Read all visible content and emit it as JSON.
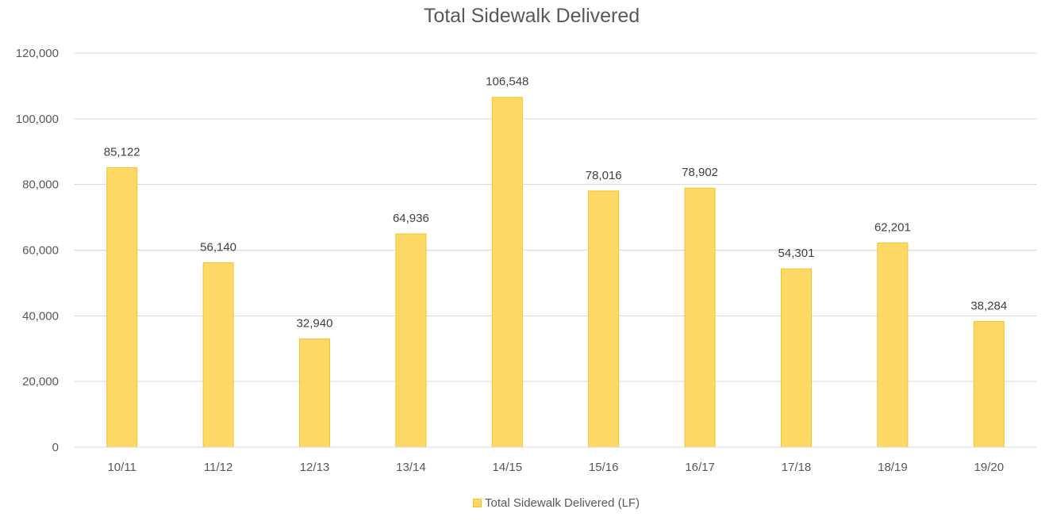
{
  "chart_data": {
    "type": "bar",
    "title": "Total Sidewalk Delivered",
    "xlabel": "",
    "ylabel": "",
    "categories": [
      "10/11",
      "11/12",
      "12/13",
      "13/14",
      "14/15",
      "15/16",
      "16/17",
      "17/18",
      "18/19",
      "19/20"
    ],
    "series": [
      {
        "name": "Total Sidewalk Delivered (LF)",
        "values": [
          85122,
          56140,
          32940,
          64936,
          106548,
          78016,
          78902,
          54301,
          62201,
          38284
        ],
        "data_labels": [
          "85,122",
          "56,140",
          "32,940",
          "64,936",
          "106,548",
          "78,016",
          "78,902",
          "54,301",
          "62,201",
          "38,284"
        ],
        "color": "#FFD966",
        "border_color": "#F5C32B"
      }
    ],
    "ylim": [
      0,
      120000
    ],
    "y_ticks": [
      0,
      20000,
      40000,
      60000,
      80000,
      100000,
      120000
    ],
    "y_tick_labels": [
      "0",
      "20,000",
      "40,000",
      "60,000",
      "80,000",
      "100,000",
      "120,000"
    ],
    "grid": true,
    "grid_color": "#D9D9D9",
    "legend_position": "bottom"
  }
}
